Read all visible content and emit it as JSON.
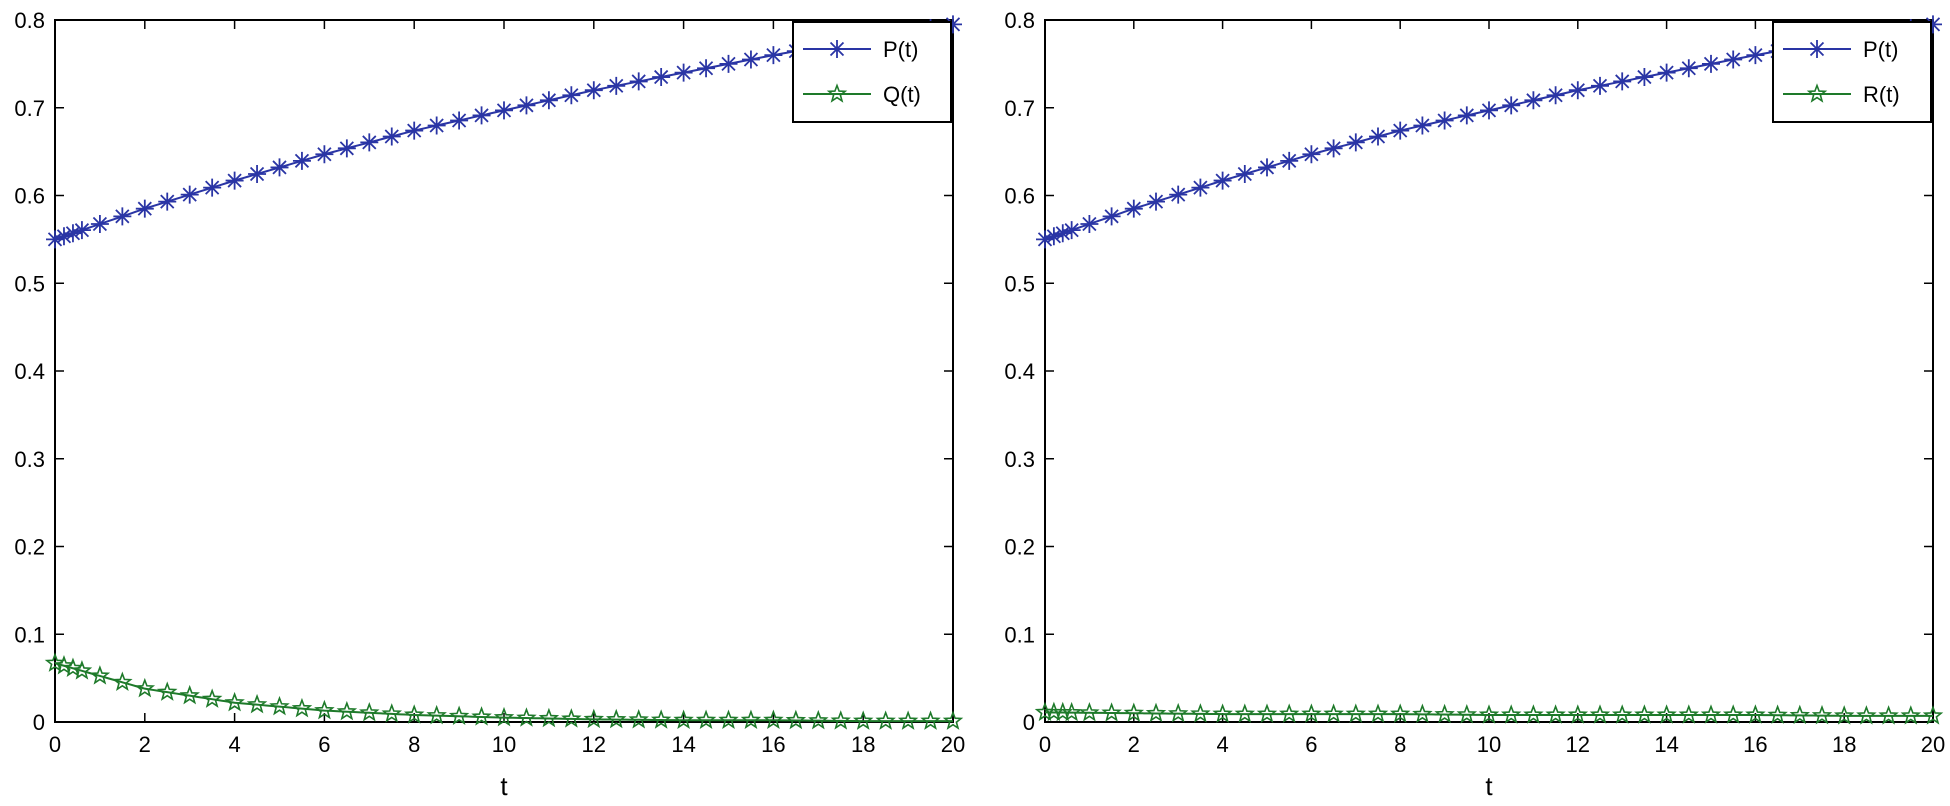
{
  "chart_data": [
    {
      "type": "line",
      "title": "",
      "xlabel": "t",
      "ylabel": "",
      "xlim": [
        0,
        20
      ],
      "ylim": [
        0,
        0.8
      ],
      "xticks": [
        "0",
        "2",
        "4",
        "6",
        "8",
        "10",
        "12",
        "14",
        "16",
        "18",
        "20"
      ],
      "yticks": [
        "0",
        "0.1",
        "0.2",
        "0.3",
        "0.4",
        "0.5",
        "0.6",
        "0.7",
        "0.8"
      ],
      "grid": false,
      "legend_position": "top-right",
      "x": [
        0,
        2,
        4,
        6,
        8,
        10,
        12,
        14,
        16,
        18,
        20
      ],
      "series": [
        {
          "name": "P(t)",
          "color": "#2a35a5",
          "marker": "asterisk",
          "values": [
            0.55,
            0.585,
            0.617,
            0.647,
            0.674,
            0.697,
            0.72,
            0.74,
            0.76,
            0.778,
            0.795
          ]
        },
        {
          "name": "Q(t)",
          "color": "#1e7a2a",
          "marker": "pentagram",
          "values": [
            0.067,
            0.038,
            0.022,
            0.013,
            0.008,
            0.005,
            0.003,
            0.002,
            0.002,
            0.001,
            0.001
          ]
        }
      ]
    },
    {
      "type": "line",
      "title": "",
      "xlabel": "t",
      "ylabel": "",
      "xlim": [
        0,
        20
      ],
      "ylim": [
        0,
        0.8
      ],
      "xticks": [
        "0",
        "2",
        "4",
        "6",
        "8",
        "10",
        "12",
        "14",
        "16",
        "18",
        "20"
      ],
      "yticks": [
        "0",
        "0.1",
        "0.2",
        "0.3",
        "0.4",
        "0.5",
        "0.6",
        "0.7",
        "0.8"
      ],
      "grid": false,
      "legend_position": "top-right",
      "x": [
        0,
        2,
        4,
        6,
        8,
        10,
        12,
        14,
        16,
        18,
        20
      ],
      "series": [
        {
          "name": "P(t)",
          "color": "#2a35a5",
          "marker": "asterisk",
          "values": [
            0.55,
            0.585,
            0.617,
            0.647,
            0.674,
            0.697,
            0.72,
            0.74,
            0.76,
            0.778,
            0.795
          ]
        },
        {
          "name": "R(t)",
          "color": "#1e7a2a",
          "marker": "pentagram",
          "values": [
            0.011,
            0.01,
            0.009,
            0.009,
            0.009,
            0.008,
            0.008,
            0.008,
            0.008,
            0.007,
            0.007
          ]
        }
      ]
    }
  ]
}
